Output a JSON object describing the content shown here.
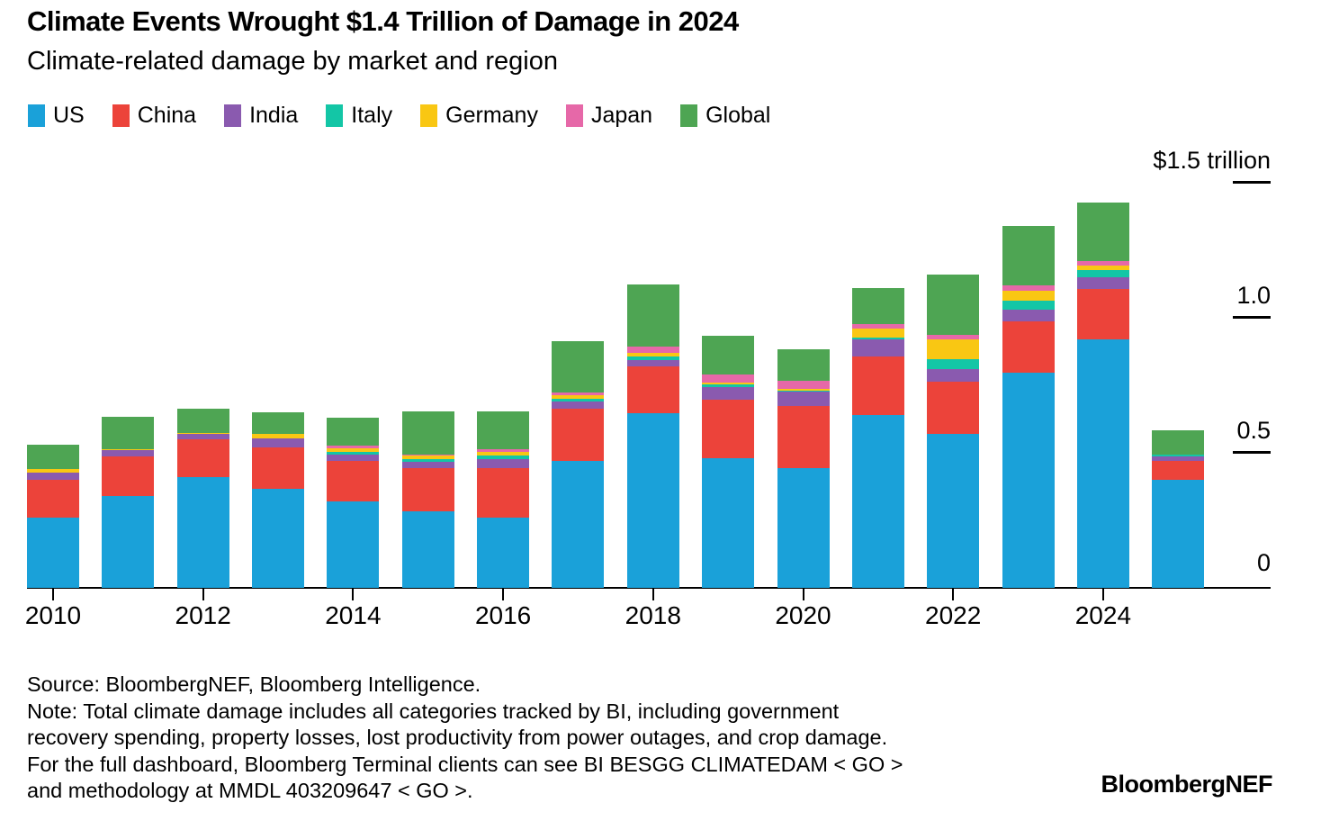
{
  "header": {
    "title": "Climate Events Wrought $1.4 Trillion of Damage in 2024",
    "subtitle": "Climate-related damage by market and region"
  },
  "legend": [
    {
      "label": "US",
      "color": "#1AA1D9"
    },
    {
      "label": "China",
      "color": "#EC433A"
    },
    {
      "label": "India",
      "color": "#8A5AAF"
    },
    {
      "label": "Italy",
      "color": "#13C6A6"
    },
    {
      "label": "Germany",
      "color": "#F9C713"
    },
    {
      "label": "Japan",
      "color": "#E668A8"
    },
    {
      "label": "Global",
      "color": "#4EA553"
    }
  ],
  "chart_data": {
    "type": "bar",
    "subtype": "stacked",
    "title": "Climate Events Wrought $1.4 Trillion of Damage in 2024",
    "subtitle": "Climate-related damage by market and region",
    "unit": "trillion USD",
    "categories": [
      2010,
      2011,
      2012,
      2013,
      2014,
      2015,
      2016,
      2017,
      2018,
      2019,
      2020,
      2021,
      2022,
      2023,
      2024,
      2025
    ],
    "series": [
      {
        "name": "US",
        "color": "#1AA1D9",
        "values": [
          0.26,
          0.34,
          0.41,
          0.365,
          0.317,
          0.283,
          0.259,
          0.47,
          0.645,
          0.478,
          0.442,
          0.639,
          0.57,
          0.795,
          0.92,
          0.4
        ]
      },
      {
        "name": "China",
        "color": "#EC433A",
        "values": [
          0.14,
          0.145,
          0.14,
          0.155,
          0.15,
          0.159,
          0.183,
          0.192,
          0.173,
          0.217,
          0.231,
          0.217,
          0.192,
          0.19,
          0.186,
          0.067
        ]
      },
      {
        "name": "India",
        "color": "#8A5AAF",
        "values": [
          0.025,
          0.022,
          0.017,
          0.031,
          0.026,
          0.024,
          0.033,
          0.027,
          0.024,
          0.048,
          0.052,
          0.062,
          0.047,
          0.043,
          0.044,
          0.017
        ]
      },
      {
        "name": "Italy",
        "color": "#13C6A6",
        "values": [
          0,
          0,
          0,
          0,
          0.008,
          0.009,
          0.014,
          0.011,
          0.013,
          0.008,
          0.005,
          0.008,
          0.037,
          0.034,
          0.026,
          0.009
        ]
      },
      {
        "name": "Germany",
        "color": "#F9C713",
        "values": [
          0.013,
          0.006,
          0.006,
          0.019,
          0.015,
          0.013,
          0.013,
          0.012,
          0.014,
          0.008,
          0.006,
          0.031,
          0.074,
          0.036,
          0.017,
          0
        ]
      },
      {
        "name": "Japan",
        "color": "#E668A8",
        "values": [
          0,
          0,
          0,
          0,
          0.009,
          0.003,
          0.011,
          0.01,
          0.022,
          0.03,
          0.028,
          0.019,
          0.014,
          0.019,
          0.017,
          0
        ]
      },
      {
        "name": "Global",
        "color": "#4EA553",
        "values": [
          0.09,
          0.12,
          0.09,
          0.078,
          0.102,
          0.16,
          0.139,
          0.19,
          0.231,
          0.142,
          0.119,
          0.133,
          0.226,
          0.223,
          0.214,
          0.089
        ]
      }
    ],
    "totals": [
      0.528,
      0.633,
      0.663,
      0.648,
      0.627,
      0.651,
      0.652,
      0.912,
      1.122,
      0.931,
      0.883,
      1.109,
      1.16,
      1.34,
      1.424,
      0.582
    ],
    "x_tick_labels": [
      "2010",
      "2012",
      "2014",
      "2016",
      "2018",
      "2020",
      "2022",
      "2024"
    ],
    "y_axis": {
      "max": 1.5,
      "ticks": [
        {
          "label": "$1.5 trillion",
          "value": 1.5,
          "dash": true
        },
        {
          "label": "1.0",
          "value": 1.0,
          "dash": true
        },
        {
          "label": "0.5",
          "value": 0.5,
          "dash": true
        },
        {
          "label": "0",
          "value": 0.0,
          "dash": false
        }
      ]
    },
    "legend_position": "top",
    "grid": false
  },
  "footer": {
    "lines": [
      "Source: BloombergNEF, Bloomberg Intelligence.",
      "Note: Total climate damage includes all categories tracked by BI, including government",
      "recovery spending, property losses, lost productivity from power outages, and crop damage.",
      "For the full dashboard, Bloomberg Terminal clients can see BI BESGG CLIMATEDAM < GO >",
      "and methodology at MMDL 403209647 < GO >."
    ]
  },
  "logo": "BloombergNEF"
}
